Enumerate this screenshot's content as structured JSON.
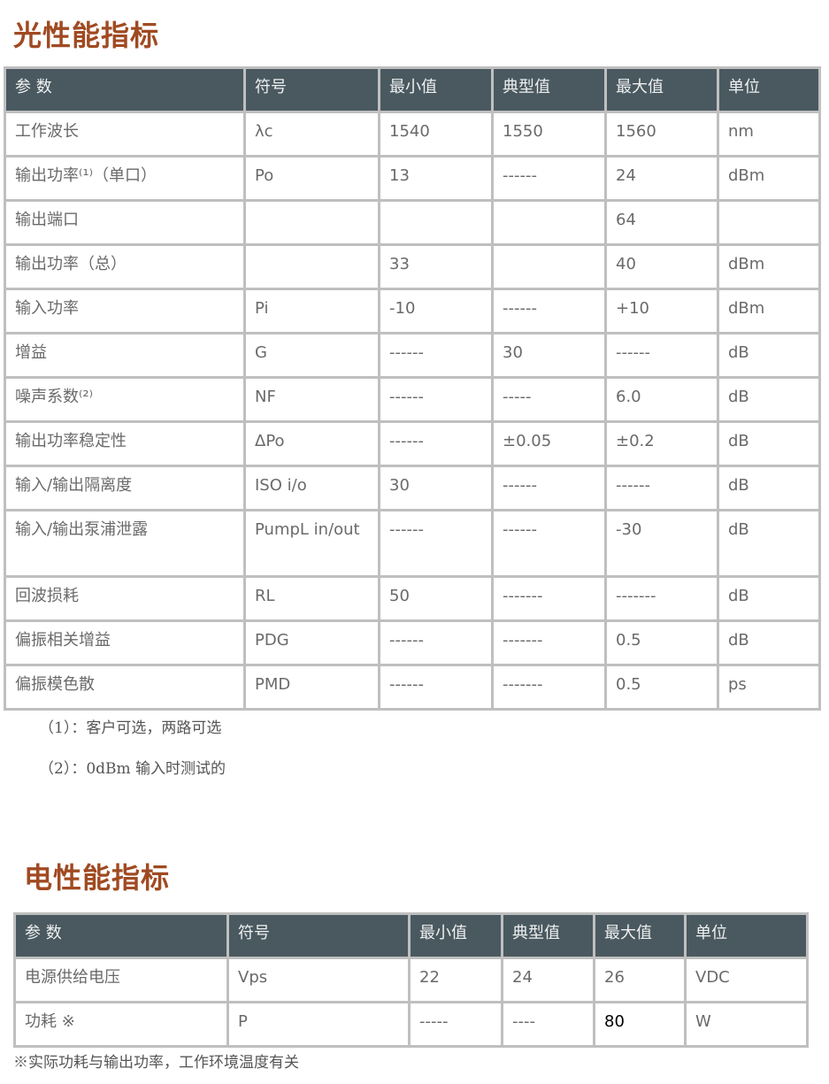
{
  "optical": {
    "title": "光性能指标",
    "headers": [
      "参 数",
      "符号",
      "最小值",
      "典型值",
      "最大值",
      "单位"
    ],
    "rows": [
      [
        "工作波长",
        "λc",
        "1540",
        "1550",
        "1560",
        "nm"
      ],
      [
        "输出功率⁽¹⁾（单口）",
        "Po",
        "13",
        "------",
        "24",
        "dBm"
      ],
      [
        "输出端口",
        "",
        "",
        "",
        "64",
        ""
      ],
      [
        "输出功率（总）",
        "",
        "33",
        "",
        "40",
        "dBm"
      ],
      [
        "输入功率",
        "Pi",
        "-10",
        "------",
        "+10",
        "dBm"
      ],
      [
        "增益",
        "G",
        "------",
        "30",
        "------",
        "dB"
      ],
      [
        "噪声系数⁽²⁾",
        "NF",
        "------",
        "-----",
        "6.0",
        "dB"
      ],
      [
        "输出功率稳定性",
        "ΔPo",
        "------",
        "±0.05",
        "±0.2",
        "dB"
      ],
      [
        "输入/输出隔离度",
        "ISO i/o",
        "30",
        "------",
        "------",
        "dB"
      ],
      [
        "输入/输出泵浦泄露",
        "PumpL in/out",
        "------",
        "------",
        "-30",
        "dB"
      ],
      [
        "回波损耗",
        "RL",
        "50",
        "-------",
        "-------",
        "dB"
      ],
      [
        "偏振相关增益",
        "PDG",
        "------",
        "-------",
        "0.5",
        "dB"
      ],
      [
        "偏振模色散",
        "PMD",
        "------",
        "-------",
        "0.5",
        "ps"
      ]
    ],
    "notes": [
      "（1）：客户可选，两路可选",
      "（2）：0dBm 输入时测试的"
    ]
  },
  "electrical": {
    "title": "电性能指标",
    "headers": [
      "参 数",
      "符号",
      "最小值",
      "典型值",
      "最大值",
      "单位"
    ],
    "rows": [
      [
        "电源供给电压",
        "Vps",
        "22",
        "24",
        "26",
        "VDC"
      ],
      [
        "功耗 ※",
        "P",
        "-----",
        "----",
        "80",
        "W"
      ]
    ],
    "note": "※实际功耗与输出功率，工作环境温度有关"
  }
}
